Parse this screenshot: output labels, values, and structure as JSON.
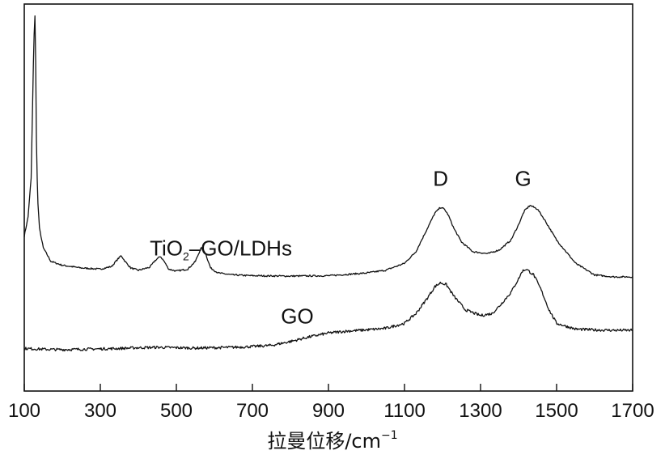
{
  "chart_data": {
    "type": "line",
    "xlabel_text": "拉曼位移/cm",
    "xlabel_sup": "−1",
    "ylabel": "",
    "xlim": [
      100,
      1700
    ],
    "ylim": [
      0,
      1
    ],
    "y_ticks_shown": false,
    "grid": false,
    "xticks": [
      100,
      300,
      500,
      700,
      900,
      1100,
      1300,
      1500,
      1700
    ],
    "xtick_labels": [
      "100",
      "300",
      "500",
      "700",
      "900",
      "1100",
      "1300",
      "1500",
      "1700"
    ],
    "series": [
      {
        "name": "TiO2–GO/LDHs",
        "label_main": "TiO",
        "label_sub": "2",
        "label_rest": "–GO/LDHs",
        "label_x": 430,
        "label_y": 0.35,
        "color": "#111111",
        "x": [
          100,
          110,
          118,
          122,
          125,
          128,
          130,
          132,
          135,
          140,
          150,
          170,
          200,
          250,
          300,
          330,
          345,
          355,
          365,
          380,
          400,
          430,
          445,
          458,
          468,
          480,
          500,
          530,
          550,
          565,
          575,
          590,
          610,
          650,
          700,
          800,
          900,
          1000,
          1050,
          1100,
          1130,
          1160,
          1180,
          1195,
          1205,
          1215,
          1230,
          1250,
          1280,
          1320,
          1350,
          1380,
          1400,
          1415,
          1430,
          1450,
          1470,
          1500,
          1550,
          1600,
          1650,
          1700
        ],
        "y": [
          0.4,
          0.45,
          0.55,
          0.74,
          0.9,
          0.97,
          0.85,
          0.65,
          0.5,
          0.42,
          0.37,
          0.335,
          0.325,
          0.318,
          0.315,
          0.322,
          0.34,
          0.35,
          0.335,
          0.318,
          0.312,
          0.32,
          0.338,
          0.348,
          0.335,
          0.315,
          0.31,
          0.315,
          0.335,
          0.37,
          0.36,
          0.318,
          0.305,
          0.3,
          0.298,
          0.297,
          0.298,
          0.305,
          0.312,
          0.33,
          0.36,
          0.42,
          0.46,
          0.475,
          0.47,
          0.455,
          0.42,
          0.385,
          0.36,
          0.355,
          0.365,
          0.39,
          0.43,
          0.465,
          0.48,
          0.47,
          0.44,
          0.39,
          0.33,
          0.3,
          0.295,
          0.295
        ],
        "peaks": [
          {
            "label": "D",
            "x": 1195,
            "y": 0.53
          },
          {
            "label": "G",
            "x": 1412,
            "y": 0.53
          }
        ]
      },
      {
        "name": "GO",
        "label_main": "GO",
        "label_x": 775,
        "label_y": 0.175,
        "color": "#111111",
        "x": [
          100,
          150,
          200,
          250,
          300,
          350,
          400,
          450,
          500,
          550,
          600,
          650,
          700,
          750,
          800,
          850,
          900,
          950,
          1000,
          1050,
          1100,
          1130,
          1160,
          1180,
          1195,
          1210,
          1230,
          1260,
          1300,
          1330,
          1350,
          1380,
          1400,
          1410,
          1420,
          1440,
          1460,
          1480,
          1500,
          1550,
          1600,
          1650,
          1700
        ],
        "y": [
          0.11,
          0.108,
          0.107,
          0.108,
          0.109,
          0.11,
          0.112,
          0.113,
          0.112,
          0.111,
          0.112,
          0.113,
          0.115,
          0.118,
          0.128,
          0.14,
          0.15,
          0.155,
          0.158,
          0.162,
          0.175,
          0.2,
          0.24,
          0.27,
          0.28,
          0.275,
          0.245,
          0.21,
          0.195,
          0.2,
          0.22,
          0.255,
          0.29,
          0.31,
          0.315,
          0.3,
          0.26,
          0.21,
          0.175,
          0.16,
          0.158,
          0.157,
          0.157
        ]
      }
    ]
  }
}
